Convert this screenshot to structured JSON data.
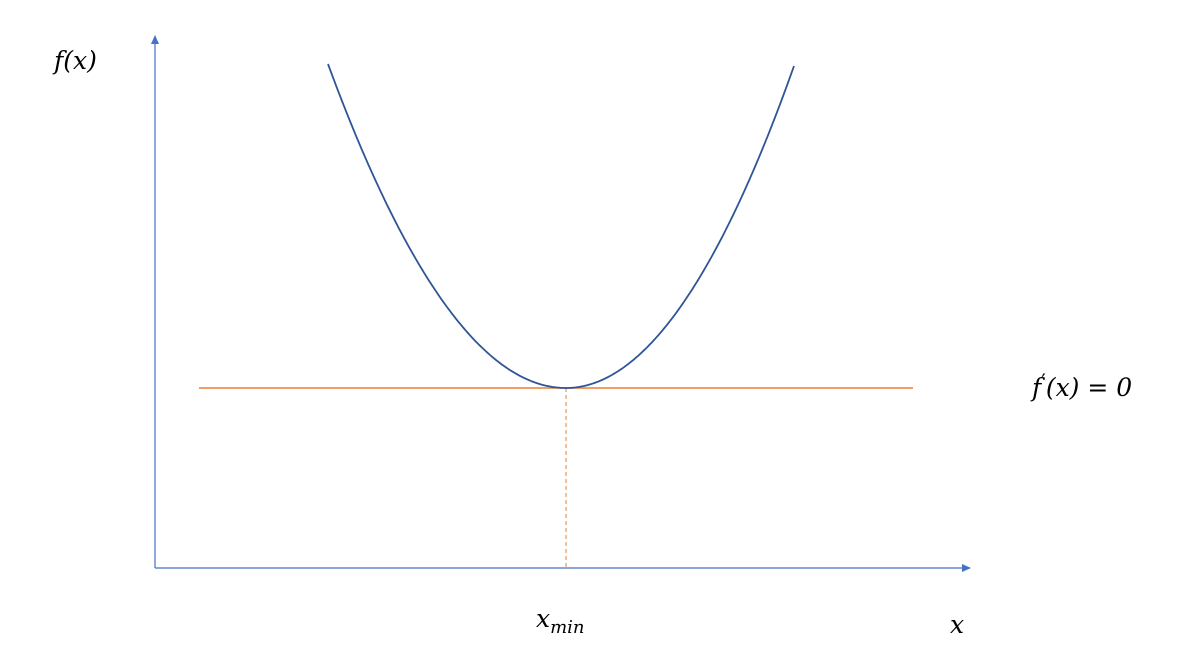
{
  "labels": {
    "y_axis": "f(x)",
    "x_axis": "x",
    "x_min": "x",
    "x_min_subscript": "min",
    "derivative_prefix": "f",
    "derivative_prime": "′",
    "derivative_suffix": "(x) = 0"
  },
  "colors": {
    "axis": "#4472c4",
    "curve": "#2f5597",
    "tangent": "#ed7d31",
    "text": "#000000"
  },
  "curve": {
    "shape": "parabola",
    "vertex_position": "minimum",
    "tangent_style": "solid",
    "drop_line_style": "dashed"
  }
}
